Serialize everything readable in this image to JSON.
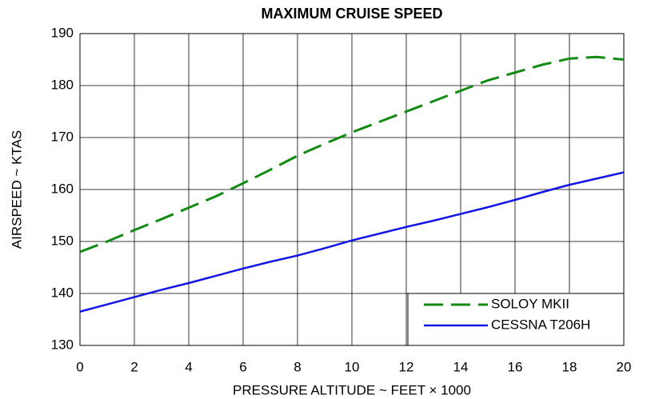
{
  "chart_data": {
    "type": "line",
    "title": "MAXIMUM CRUISE SPEED",
    "x_label": "PRESSURE ALTITUDE ~ FEET × 1000",
    "y_label": "AIRSPEED ~ KTAS",
    "x": [
      0,
      1,
      2,
      3,
      4,
      5,
      6,
      7,
      8,
      9,
      10,
      11,
      12,
      13,
      14,
      15,
      16,
      17,
      18,
      19,
      20
    ],
    "series": [
      {
        "name": "SOLOY MKII",
        "color": "#138a13",
        "dashed": true,
        "values": [
          148,
          150,
          152.2,
          154.3,
          156.5,
          158.7,
          161.2,
          163.8,
          166.5,
          168.8,
          171,
          173,
          175,
          177,
          179,
          181,
          182.5,
          184,
          185.2,
          185.5,
          185
        ]
      },
      {
        "name": "CESSNA T206H",
        "color": "#1414e6",
        "dashed": false,
        "values": [
          136.5,
          137.9,
          139.3,
          140.7,
          142,
          143.4,
          144.8,
          146.1,
          147.3,
          148.7,
          150.2,
          151.5,
          152.8,
          154,
          155.3,
          156.6,
          158,
          159.5,
          160.9,
          162.1,
          163.3
        ]
      }
    ],
    "xlim": [
      0,
      20
    ],
    "xticks": [
      0,
      2,
      4,
      6,
      8,
      10,
      12,
      14,
      16,
      18,
      20
    ],
    "ylim": [
      130,
      190
    ],
    "yticks": [
      130,
      140,
      150,
      160,
      170,
      180,
      190
    ],
    "grid": true,
    "legend": "lower right"
  }
}
